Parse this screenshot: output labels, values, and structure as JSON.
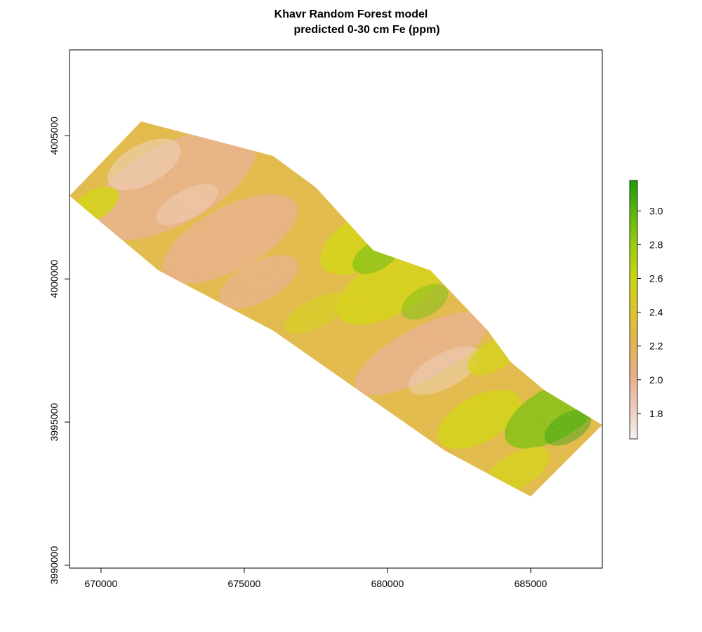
{
  "title": {
    "line1": "Khavr Random Forest model",
    "line2": "predicted 0-30 cm Fe (ppm)"
  },
  "map": {
    "x_ticks": [
      "670000",
      "675000",
      "680000",
      "685000"
    ],
    "y_ticks": [
      "3990000",
      "3995000",
      "4000000",
      "4005000"
    ],
    "x_range": [
      668900,
      687500
    ],
    "y_range": [
      3989900,
      4008000
    ],
    "polygon_outline": [
      [
        668900,
        4002900
      ],
      [
        671400,
        4005500
      ],
      [
        676000,
        4004300
      ],
      [
        677500,
        4003200
      ],
      [
        679500,
        4001000
      ],
      [
        681500,
        4000300
      ],
      [
        683500,
        3998200
      ],
      [
        684300,
        3997100
      ],
      [
        685500,
        3996100
      ],
      [
        687500,
        3994900
      ],
      [
        685000,
        3992400
      ],
      [
        682000,
        3994000
      ],
      [
        676000,
        3998200
      ],
      [
        672000,
        4000300
      ],
      [
        668900,
        4002900
      ]
    ],
    "colors": {
      "low": "#f2d4cb",
      "mid_low": "#e9b08b",
      "mid": "#e3b94a",
      "mid_high": "#d4d313",
      "high": "#7fc00f",
      "max": "#1e9e0a"
    }
  },
  "legend": {
    "ticks": [
      "1.8",
      "2.0",
      "2.2",
      "2.4",
      "2.6",
      "2.8",
      "3.0"
    ],
    "tick_values": [
      1.8,
      2.0,
      2.2,
      2.4,
      2.6,
      2.8,
      3.0
    ],
    "min": 1.65,
    "max": 3.18,
    "colorbar": [
      "#f5f0f0",
      "#eec9bb",
      "#e7ad88",
      "#e3b54f",
      "#dcc52a",
      "#c9d513",
      "#9bcc10",
      "#5db70c",
      "#1d9b09"
    ]
  }
}
